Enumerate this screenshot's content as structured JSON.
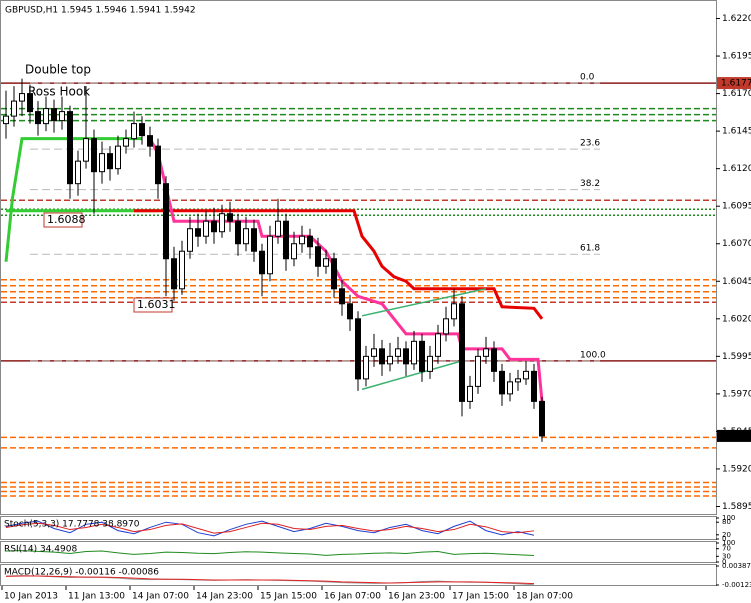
{
  "chart_data": {
    "type": "candlestick",
    "title": "GBPUSD,H1  1.5945 1.5946 1.5941 1.5942",
    "ylim": [
      1.589,
      1.6231
    ],
    "yticks": [
      {
        "value": 1.622,
        "label": "1.6220"
      },
      1.6195,
      {
        "value": 1.617,
        "label": "1.6170"
      },
      1.6145,
      {
        "value": 1.612,
        "label": "1.6120"
      },
      1.6095,
      {
        "value": 1.607,
        "label": "1.6070"
      },
      1.6045,
      {
        "value": 1.602,
        "label": "1.6020"
      },
      1.5995,
      {
        "value": 1.597,
        "label": "1.5970"
      },
      1.5945,
      {
        "value": 1.592,
        "label": "1.5920"
      },
      1.5895
    ],
    "price_tags": [
      {
        "value": 1.6177,
        "color": "#c0392b"
      },
      {
        "value": 1.5942,
        "color": "#000000"
      }
    ],
    "x_labels": [
      "10 Jan 2013",
      "11 Jan 13:00",
      "14 Jan 07:00",
      "14 Jan 23:00",
      "15 Jan 15:00",
      "16 Jan 07:00",
      "16 Jan 23:00",
      "17 Jan 15:00",
      "18 Jan 07:00"
    ],
    "candles": [
      [
        1.615,
        1.6172,
        1.614,
        1.6155
      ],
      [
        1.6155,
        1.6175,
        1.6148,
        1.6165
      ],
      [
        1.6165,
        1.618,
        1.6155,
        1.617
      ],
      [
        1.617,
        1.6176,
        1.615,
        1.6158
      ],
      [
        1.6158,
        1.6165,
        1.6142,
        1.615
      ],
      [
        1.615,
        1.6168,
        1.6145,
        1.616
      ],
      [
        1.616,
        1.6166,
        1.6144,
        1.6152
      ],
      [
        1.6152,
        1.6168,
        1.6146,
        1.6158
      ],
      [
        1.6158,
        1.6162,
        1.61,
        1.611
      ],
      [
        1.611,
        1.6132,
        1.6102,
        1.6125
      ],
      [
        1.6125,
        1.6175,
        1.612,
        1.614
      ],
      [
        1.614,
        1.6146,
        1.609,
        1.6118
      ],
      [
        1.6118,
        1.6138,
        1.611,
        1.613
      ],
      [
        1.613,
        1.6135,
        1.6112,
        1.612
      ],
      [
        1.612,
        1.6142,
        1.6116,
        1.6135
      ],
      [
        1.6135,
        1.6146,
        1.613,
        1.614
      ],
      [
        1.614,
        1.6158,
        1.6134,
        1.615
      ],
      [
        1.615,
        1.6155,
        1.6136,
        1.6142
      ],
      [
        1.6142,
        1.6148,
        1.6128,
        1.6135
      ],
      [
        1.6135,
        1.614,
        1.61,
        1.611
      ],
      [
        1.611,
        1.6115,
        1.6035,
        1.606
      ],
      [
        1.606,
        1.6068,
        1.6032,
        1.604
      ],
      [
        1.604,
        1.6072,
        1.6036,
        1.6065
      ],
      [
        1.6065,
        1.6088,
        1.606,
        1.608
      ],
      [
        1.608,
        1.609,
        1.6068,
        1.6075
      ],
      [
        1.6075,
        1.6092,
        1.607,
        1.6085
      ],
      [
        1.6085,
        1.6094,
        1.607,
        1.6078
      ],
      [
        1.6078,
        1.6096,
        1.6074,
        1.609
      ],
      [
        1.609,
        1.6098,
        1.6078,
        1.6085
      ],
      [
        1.6085,
        1.609,
        1.6062,
        1.607
      ],
      [
        1.607,
        1.6088,
        1.6065,
        1.608
      ],
      [
        1.608,
        1.6086,
        1.6058,
        1.6065
      ],
      [
        1.6065,
        1.607,
        1.6035,
        1.605
      ],
      [
        1.605,
        1.6082,
        1.6045,
        1.6075
      ],
      [
        1.6075,
        1.61,
        1.607,
        1.6085
      ],
      [
        1.6085,
        1.609,
        1.6052,
        1.606
      ],
      [
        1.606,
        1.6078,
        1.6055,
        1.607
      ],
      [
        1.607,
        1.6082,
        1.6064,
        1.6075
      ],
      [
        1.6075,
        1.608,
        1.606,
        1.6068
      ],
      [
        1.6068,
        1.6074,
        1.6048,
        1.6055
      ],
      [
        1.6055,
        1.6066,
        1.605,
        1.606
      ],
      [
        1.606,
        1.6064,
        1.6034,
        1.604
      ],
      [
        1.604,
        1.6046,
        1.6022,
        1.603
      ],
      [
        1.603,
        1.6036,
        1.6012,
        1.602
      ],
      [
        1.602,
        1.6025,
        1.5972,
        1.598
      ],
      [
        1.598,
        1.6002,
        1.5975,
        1.5995
      ],
      [
        1.5995,
        1.601,
        1.5988,
        1.6
      ],
      [
        1.6,
        1.6006,
        1.5982,
        1.599
      ],
      [
        1.599,
        1.6004,
        1.5985,
        1.5995
      ],
      [
        1.5995,
        1.6008,
        1.599,
        1.6
      ],
      [
        1.6,
        1.6005,
        1.5982,
        1.599
      ],
      [
        1.599,
        1.6012,
        1.5986,
        1.6005
      ],
      [
        1.6005,
        1.601,
        1.5978,
        1.5985
      ],
      [
        1.5985,
        1.6002,
        1.598,
        1.5995
      ],
      [
        1.5995,
        1.6016,
        1.599,
        1.601
      ],
      [
        1.601,
        1.6028,
        1.6005,
        1.602
      ],
      [
        1.602,
        1.604,
        1.6015,
        1.603
      ],
      [
        1.603,
        1.6035,
        1.5955,
        1.5965
      ],
      [
        1.5965,
        1.5982,
        1.596,
        1.5975
      ],
      [
        1.5975,
        1.6,
        1.597,
        1.5995
      ],
      [
        1.5995,
        1.6008,
        1.599,
        1.6
      ],
      [
        1.6,
        1.6005,
        1.5978,
        1.5985
      ],
      [
        1.5985,
        1.599,
        1.5962,
        1.597
      ],
      [
        1.597,
        1.5984,
        1.5965,
        1.5978
      ],
      [
        1.5978,
        1.5986,
        1.5972,
        1.598
      ],
      [
        1.598,
        1.5992,
        1.5976,
        1.5985
      ],
      [
        1.5985,
        1.599,
        1.596,
        1.5965
      ],
      [
        1.5965,
        1.5968,
        1.5938,
        1.5942
      ]
    ],
    "levels": [
      {
        "value": 1.6177,
        "color": "#8b1a1a",
        "dash": "none"
      },
      {
        "value": 1.5992,
        "color": "#8b1a1a",
        "dash": "none"
      },
      {
        "value": 1.616,
        "color": "#1e8b1e",
        "dash": "6 3"
      },
      {
        "value": 1.6156,
        "color": "#1e8b1e",
        "dash": "6 3"
      },
      {
        "value": 1.6152,
        "color": "#1e8b1e",
        "dash": "6 3"
      },
      {
        "value": 1.6099,
        "color": "#c0392b",
        "dash": "6 3"
      },
      {
        "value": 1.6093,
        "color": "#1e8b1e",
        "dash": "2 2"
      },
      {
        "value": 1.6089,
        "color": "#1e8b1e",
        "dash": "2 2"
      },
      {
        "value": 1.6046,
        "color": "#ff6a00",
        "dash": "6 3"
      },
      {
        "value": 1.6042,
        "color": "#ff6a00",
        "dash": "6 3"
      },
      {
        "value": 1.6038,
        "color": "#ff6a00",
        "dash": "6 3"
      },
      {
        "value": 1.6034,
        "color": "#ff6a00",
        "dash": "6 3"
      },
      {
        "value": 1.6031,
        "color": "#c0392b",
        "dash": "6 3"
      },
      {
        "value": 1.5941,
        "color": "#ff6a00",
        "dash": "6 3"
      },
      {
        "value": 1.5934,
        "color": "#ff6a00",
        "dash": "6 3"
      },
      {
        "value": 1.5911,
        "color": "#ff6a00",
        "dash": "6 3"
      },
      {
        "value": 1.5908,
        "color": "#ff6a00",
        "dash": "6 3"
      },
      {
        "value": 1.5905,
        "color": "#ff6a00",
        "dash": "6 3"
      },
      {
        "value": 1.5902,
        "color": "#ff6a00",
        "dash": "6 3"
      }
    ],
    "fib": [
      {
        "label": "0.0",
        "value": 1.6177
      },
      {
        "label": "23.6",
        "value": 1.6133
      },
      {
        "label": "38.2",
        "value": 1.6106
      },
      {
        "label": "61.8",
        "value": 1.6063
      },
      {
        "label": "100.0",
        "value": 1.5992
      }
    ],
    "overlays": [
      {
        "color": "#33cc33",
        "points": [
          [
            0,
            1.6058
          ],
          [
            0.8,
            1.61
          ],
          [
            2,
            1.614
          ],
          [
            17,
            1.614
          ]
        ]
      },
      {
        "color": "#33cc33",
        "points": [
          [
            0,
            1.6092
          ],
          [
            19,
            1.6092
          ]
        ]
      },
      {
        "color": "#e60000",
        "points": [
          [
            16,
            1.6092
          ],
          [
            43.5,
            1.6092
          ],
          [
            44.5,
            1.6075
          ],
          [
            46,
            1.6065
          ],
          [
            47,
            1.6055
          ],
          [
            48.5,
            1.6048
          ],
          [
            50,
            1.6045
          ],
          [
            51,
            1.604
          ],
          [
            61,
            1.604
          ],
          [
            62,
            1.6028
          ],
          [
            66,
            1.6027
          ],
          [
            67,
            1.602
          ]
        ]
      },
      {
        "color": "#ff3399",
        "points": [
          [
            18,
            1.614
          ],
          [
            19,
            1.613
          ],
          [
            21,
            1.6085
          ],
          [
            31.5,
            1.6085
          ],
          [
            32,
            1.6075
          ],
          [
            38,
            1.6075
          ],
          [
            40,
            1.6065
          ],
          [
            42,
            1.6045
          ],
          [
            44,
            1.6035
          ],
          [
            47,
            1.603
          ],
          [
            50,
            1.601
          ],
          [
            56.5,
            1.601
          ],
          [
            57,
            1.6
          ],
          [
            62,
            1.6
          ],
          [
            63,
            1.5993
          ],
          [
            66.5,
            1.5993
          ],
          [
            67,
            1.5965
          ]
        ]
      }
    ],
    "channel": [
      [
        [
          44.5,
          1.6022
        ],
        [
          60,
          1.604
        ]
      ],
      [
        [
          44.5,
          1.5973
        ],
        [
          57,
          1.5992
        ]
      ]
    ],
    "annotations": [
      {
        "text": "Double top",
        "color": "#1e8b1e"
      },
      {
        "text": "Ross Hook",
        "color": "#888888"
      }
    ],
    "boxes": [
      "1.6088",
      "1.6031"
    ],
    "indicators": [
      {
        "label": "Stoch(5,3,3) 17.7778 38.8970",
        "ylim": [
          0,
          100
        ],
        "ticks": [
          100,
          80,
          20,
          0
        ],
        "series": [
          {
            "color": "#1f3fcf",
            "values": [
              60,
              75,
              85,
              50,
              30,
              70,
              80,
              40,
              25,
              55,
              80,
              70,
              30,
              15,
              45,
              70,
              85,
              60,
              35,
              50,
              75,
              60,
              40,
              30,
              55,
              70,
              40,
              25,
              60,
              85,
              40,
              20,
              35,
              18
            ]
          },
          {
            "color": "#e02020",
            "values": [
              55,
              68,
              75,
              65,
              45,
              55,
              70,
              55,
              35,
              45,
              65,
              72,
              50,
              28,
              35,
              55,
              75,
              70,
              50,
              45,
              60,
              65,
              50,
              38,
              45,
              60,
              50,
              35,
              45,
              70,
              58,
              35,
              30,
              39
            ]
          }
        ]
      },
      {
        "label": "RSI(14) 34.4908",
        "ylim": [
          0,
          100
        ],
        "ticks": [
          100,
          70,
          30,
          0
        ],
        "series": [
          {
            "color": "#1e8b1e",
            "values": [
              58,
              60,
              56,
              52,
              45,
              55,
              58,
              48,
              40,
              45,
              52,
              50,
              46,
              44,
              50,
              54,
              52,
              48,
              45,
              42,
              35,
              40,
              42,
              46,
              48,
              45,
              52,
              55,
              40,
              44,
              46,
              42,
              38,
              34
            ]
          }
        ]
      },
      {
        "label": "MACD(12,26,9) -0.00116 -0.00086",
        "ylim": [
          -0.00123,
          0.00387
        ],
        "ticks": [
          {
            "value": 0.00387,
            "label": "0.00387"
          },
          {
            "value": -0.00123,
            "label": "-0.00123"
          }
        ],
        "series": [
          {
            "color": "#999999",
            "values": [
              0.0012,
              0.0013,
              0.0012,
              0.001,
              0.0008,
              0.0009,
              0.0008,
              0.0006,
              0.0003,
              0.0002,
              0.0003,
              0.0002,
              0.0001,
              0,
              0.0001,
              0.0002,
              0.0001,
              0,
              -0.0001,
              -0.0002,
              -0.0004,
              -0.0006,
              -0.0007,
              -0.0008,
              -0.0007,
              -0.0006,
              -0.0003,
              -0.0002,
              -0.0004,
              -0.0005,
              -0.0005,
              -0.0007,
              -0.0009,
              -0.00116
            ]
          },
          {
            "color": "#e02020",
            "values": [
              0.0011,
              0.0012,
              0.0012,
              0.0011,
              0.001,
              0.0009,
              0.0009,
              0.0008,
              0.0006,
              0.0004,
              0.0003,
              0.0003,
              0.0002,
              0.0001,
              0.0001,
              0.0001,
              0.0001,
              0.0001,
              0,
              -0.0001,
              -0.0002,
              -0.0004,
              -0.0005,
              -0.0006,
              -0.0007,
              -0.0006,
              -0.0005,
              -0.0004,
              -0.0004,
              -0.0004,
              -0.0005,
              -0.0006,
              -0.0007,
              -0.00086
            ]
          }
        ]
      }
    ]
  }
}
